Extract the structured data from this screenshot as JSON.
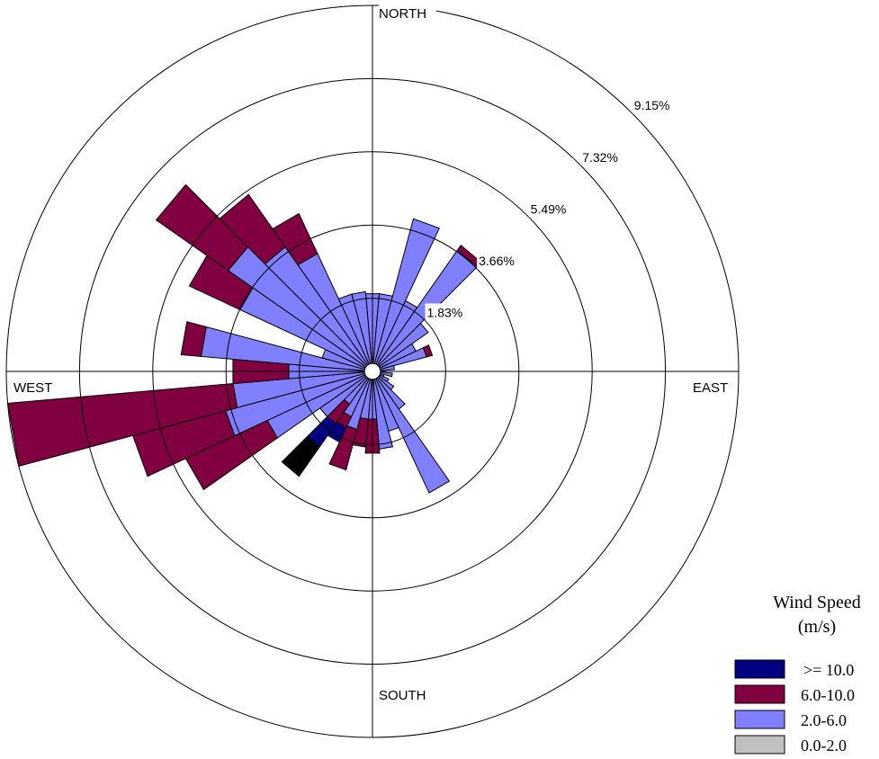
{
  "chart_data": {
    "type": "wind-rose",
    "directions": {
      "north": "NORTH",
      "south": "SOUTH",
      "east": "EAST",
      "west": "WEST"
    },
    "ring_labels": [
      "1.83%",
      "3.66%",
      "5.49%",
      "7.32%",
      "9.15%"
    ],
    "ring_values": [
      1.83,
      3.66,
      5.49,
      7.32,
      9.15
    ],
    "max_percent": 9.15,
    "sector_count": 36,
    "sector_width_deg": 10,
    "legend": {
      "title_line1": "Wind Speed",
      "title_line2": "(m/s)",
      "entries": [
        {
          "label": ">= 10.0",
          "color": "#000080"
        },
        {
          "label": "6.0-10.0",
          "color": "#800040"
        },
        {
          "label": "2.0-6.0",
          "color": "#8080ff"
        },
        {
          "label": "0.0-2.0",
          "color": "#c0c0c0"
        }
      ]
    },
    "bin_order": [
      "0.0-2.0",
      "2.0-6.0",
      "6.0-10.0",
      ">= 10.0"
    ],
    "bin_colors": [
      "#c0c0c0",
      "#8080ff",
      "#800040",
      "#000080"
    ],
    "sectors": [
      {
        "dir": 0,
        "cum": [
          0.2,
          1.95
        ]
      },
      {
        "dir": 10,
        "cum": [
          0.2,
          1.95
        ]
      },
      {
        "dir": 20,
        "cum": [
          0.2,
          3.95
        ]
      },
      {
        "dir": 30,
        "cum": [
          0.2,
          1.95
        ]
      },
      {
        "dir": 40,
        "cum": [
          0.2,
          3.7,
          3.85
        ]
      },
      {
        "dir": 50,
        "cum": [
          0.2,
          1.7
        ]
      },
      {
        "dir": 60,
        "cum": [
          0.2,
          1.2
        ]
      },
      {
        "dir": 70,
        "cum": [
          0.2,
          1.4,
          1.55
        ]
      },
      {
        "dir": 80,
        "cum": [
          0.2,
          0.55
        ]
      },
      {
        "dir": 90,
        "cum": [
          0.2,
          0.25
        ]
      },
      {
        "dir": 100,
        "cum": [
          0.2,
          0.5
        ]
      },
      {
        "dir": 110,
        "cum": [
          0.2,
          0.3
        ]
      },
      {
        "dir": 120,
        "cum": [
          0.2,
          0.45
        ]
      },
      {
        "dir": 130,
        "cum": [
          0.2,
          0.65
        ]
      },
      {
        "dir": 140,
        "cum": [
          0.2,
          1.15
        ]
      },
      {
        "dir": 150,
        "cum": [
          0.2,
          3.35
        ]
      },
      {
        "dir": 160,
        "cum": [
          0.2,
          1.55
        ]
      },
      {
        "dir": 170,
        "cum": [
          0.2,
          1.95
        ]
      },
      {
        "dir": 180,
        "cum": [
          0.2,
          1.2,
          2.05
        ]
      },
      {
        "dir": 190,
        "cum": [
          0.2,
          1.2,
          1.9
        ]
      },
      {
        "dir": 200,
        "cum": [
          0.2,
          1.5,
          2.55
        ]
      },
      {
        "dir": 210,
        "cum": [
          0.2,
          1.25,
          1.55,
          1.95
        ]
      },
      {
        "dir": 220,
        "cum": [
          0.2,
          1.0,
          1.6,
          2.3,
          3.2
        ]
      },
      {
        "dir": 230,
        "cum": [
          0.2,
          1.6
        ]
      },
      {
        "dir": 240,
        "cum": [
          0.2,
          2.9,
          5.15
        ]
      },
      {
        "dir": 250,
        "cum": [
          0.2,
          3.8,
          6.2
        ]
      },
      {
        "dir": 260,
        "cum": [
          0.2,
          3.5,
          9.15
        ]
      },
      {
        "dir": 270,
        "cum": [
          0.2,
          2.1,
          3.5
        ]
      },
      {
        "dir": 280,
        "cum": [
          0.2,
          4.3,
          4.8
        ]
      },
      {
        "dir": 290,
        "cum": [
          0.2,
          1.3
        ]
      },
      {
        "dir": 300,
        "cum": [
          0.2,
          3.65,
          5.05
        ]
      },
      {
        "dir": 310,
        "cum": [
          0.2,
          4.4,
          6.6
        ]
      },
      {
        "dir": 320,
        "cum": [
          0.2,
          3.8,
          5.4
        ]
      },
      {
        "dir": 330,
        "cum": [
          0.2,
          3.25,
          4.35
        ]
      },
      {
        "dir": 340,
        "cum": [
          0.2,
          2.0
        ]
      },
      {
        "dir": 350,
        "cum": [
          0.2,
          2.0
        ]
      }
    ]
  }
}
